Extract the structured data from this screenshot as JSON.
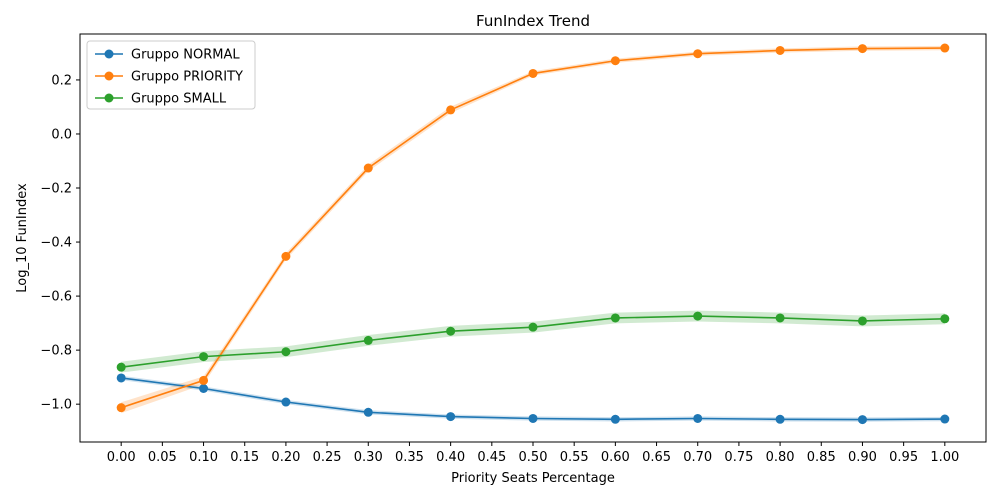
{
  "chart_data": {
    "type": "line",
    "title": "FunIndex Trend",
    "xlabel": "Priority Seats Percentage",
    "ylabel": "Log_10 FunIndex",
    "xlim": [
      -0.05,
      1.05
    ],
    "ylim": [
      -1.14,
      0.37
    ],
    "xticks": [
      0.0,
      0.05,
      0.1,
      0.15,
      0.2,
      0.25,
      0.3,
      0.35,
      0.4,
      0.45,
      0.5,
      0.55,
      0.6,
      0.65,
      0.7,
      0.75,
      0.8,
      0.85,
      0.9,
      0.95,
      1.0
    ],
    "xtick_labels": [
      "0.00",
      "0.05",
      "0.10",
      "0.15",
      "0.20",
      "0.25",
      "0.30",
      "0.35",
      "0.40",
      "0.45",
      "0.50",
      "0.55",
      "0.60",
      "0.65",
      "0.70",
      "0.75",
      "0.80",
      "0.85",
      "0.90",
      "0.95",
      "1.00"
    ],
    "yticks": [
      -1.0,
      -0.8,
      -0.6,
      -0.4,
      -0.2,
      0.0,
      0.2
    ],
    "ytick_labels": [
      "−1.0",
      "−0.8",
      "−0.6",
      "−0.4",
      "−0.2",
      "0.0",
      "0.2"
    ],
    "grid": false,
    "legend_position": "top-left",
    "x": [
      0.0,
      0.1,
      0.2,
      0.3,
      0.4,
      0.5,
      0.6,
      0.7,
      0.8,
      0.9,
      1.0
    ],
    "series": [
      {
        "name": "Gruppo NORMAL",
        "color": "#1f77b4",
        "values": [
          -0.903,
          -0.942,
          -0.992,
          -1.03,
          -1.046,
          -1.053,
          -1.056,
          -1.053,
          -1.056,
          -1.057,
          -1.055
        ],
        "band": [
          0.008,
          0.008,
          0.008,
          0.008,
          0.008,
          0.008,
          0.008,
          0.008,
          0.008,
          0.008,
          0.008
        ]
      },
      {
        "name": "Gruppo PRIORITY",
        "color": "#ff7f0e",
        "values": [
          -1.013,
          -0.912,
          -0.453,
          -0.126,
          0.089,
          0.224,
          0.271,
          0.297,
          0.309,
          0.316,
          0.318
        ],
        "band": [
          0.02,
          0.015,
          0.012,
          0.012,
          0.012,
          0.008,
          0.008,
          0.008,
          0.008,
          0.008,
          0.008
        ]
      },
      {
        "name": "Gruppo SMALL",
        "color": "#2ca02c",
        "values": [
          -0.863,
          -0.824,
          -0.806,
          -0.764,
          -0.73,
          -0.715,
          -0.681,
          -0.674,
          -0.681,
          -0.692,
          -0.684
        ],
        "band": [
          0.02,
          0.02,
          0.02,
          0.02,
          0.02,
          0.02,
          0.02,
          0.02,
          0.02,
          0.02,
          0.02
        ]
      }
    ]
  }
}
